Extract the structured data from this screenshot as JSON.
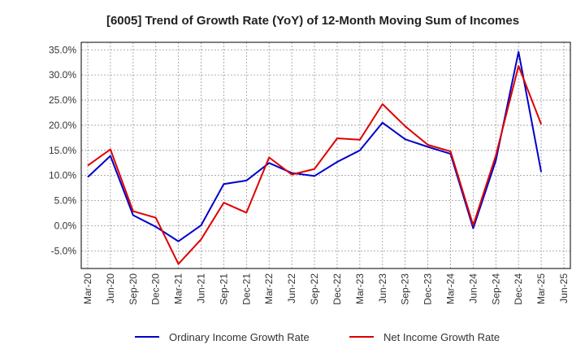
{
  "chart_data": {
    "type": "line",
    "title": "[6005]  Trend of Growth Rate (YoY) of 12-Month Moving Sum of Incomes",
    "xlabel": "",
    "ylabel": "",
    "x_tick_labels": [
      "Mar-20",
      "Jun-20",
      "Sep-20",
      "Dec-20",
      "Mar-21",
      "Jun-21",
      "Sep-21",
      "Dec-21",
      "Mar-22",
      "Jun-22",
      "Sep-22",
      "Dec-22",
      "Mar-23",
      "Jun-23",
      "Sep-23",
      "Dec-23",
      "Mar-24",
      "Jun-24",
      "Sep-24",
      "Dec-24",
      "Mar-25",
      "Jun-25"
    ],
    "y_ticks": [
      35.0,
      30.0,
      25.0,
      20.0,
      15.0,
      10.0,
      5.0,
      0.0,
      -5.0
    ],
    "y_tick_labels": [
      "35.0%",
      "30.0%",
      "25.0%",
      "20.0%",
      "15.0%",
      "10.0%",
      "5.0%",
      "0.0%",
      "-5.0%"
    ],
    "ylim": [
      -8.5,
      36.5
    ],
    "grid": true,
    "legend_position": "bottom",
    "series": [
      {
        "name": "Ordinary Income Growth Rate",
        "color": "#0000cc",
        "values": [
          9.7,
          13.9,
          2.1,
          -0.2,
          -3.1,
          0.1,
          8.3,
          9.0,
          12.5,
          10.5,
          9.9,
          12.7,
          15.0,
          20.5,
          17.2,
          15.7,
          14.3,
          -0.5,
          13.0,
          34.6,
          10.7
        ]
      },
      {
        "name": "Net Income Growth Rate",
        "color": "#dd0000",
        "values": [
          12.0,
          15.2,
          2.9,
          1.6,
          -7.6,
          -2.7,
          4.6,
          2.6,
          13.6,
          10.2,
          11.3,
          17.4,
          17.1,
          24.2,
          19.8,
          16.1,
          14.8,
          0.1,
          14.0,
          31.8,
          20.2
        ]
      }
    ]
  }
}
